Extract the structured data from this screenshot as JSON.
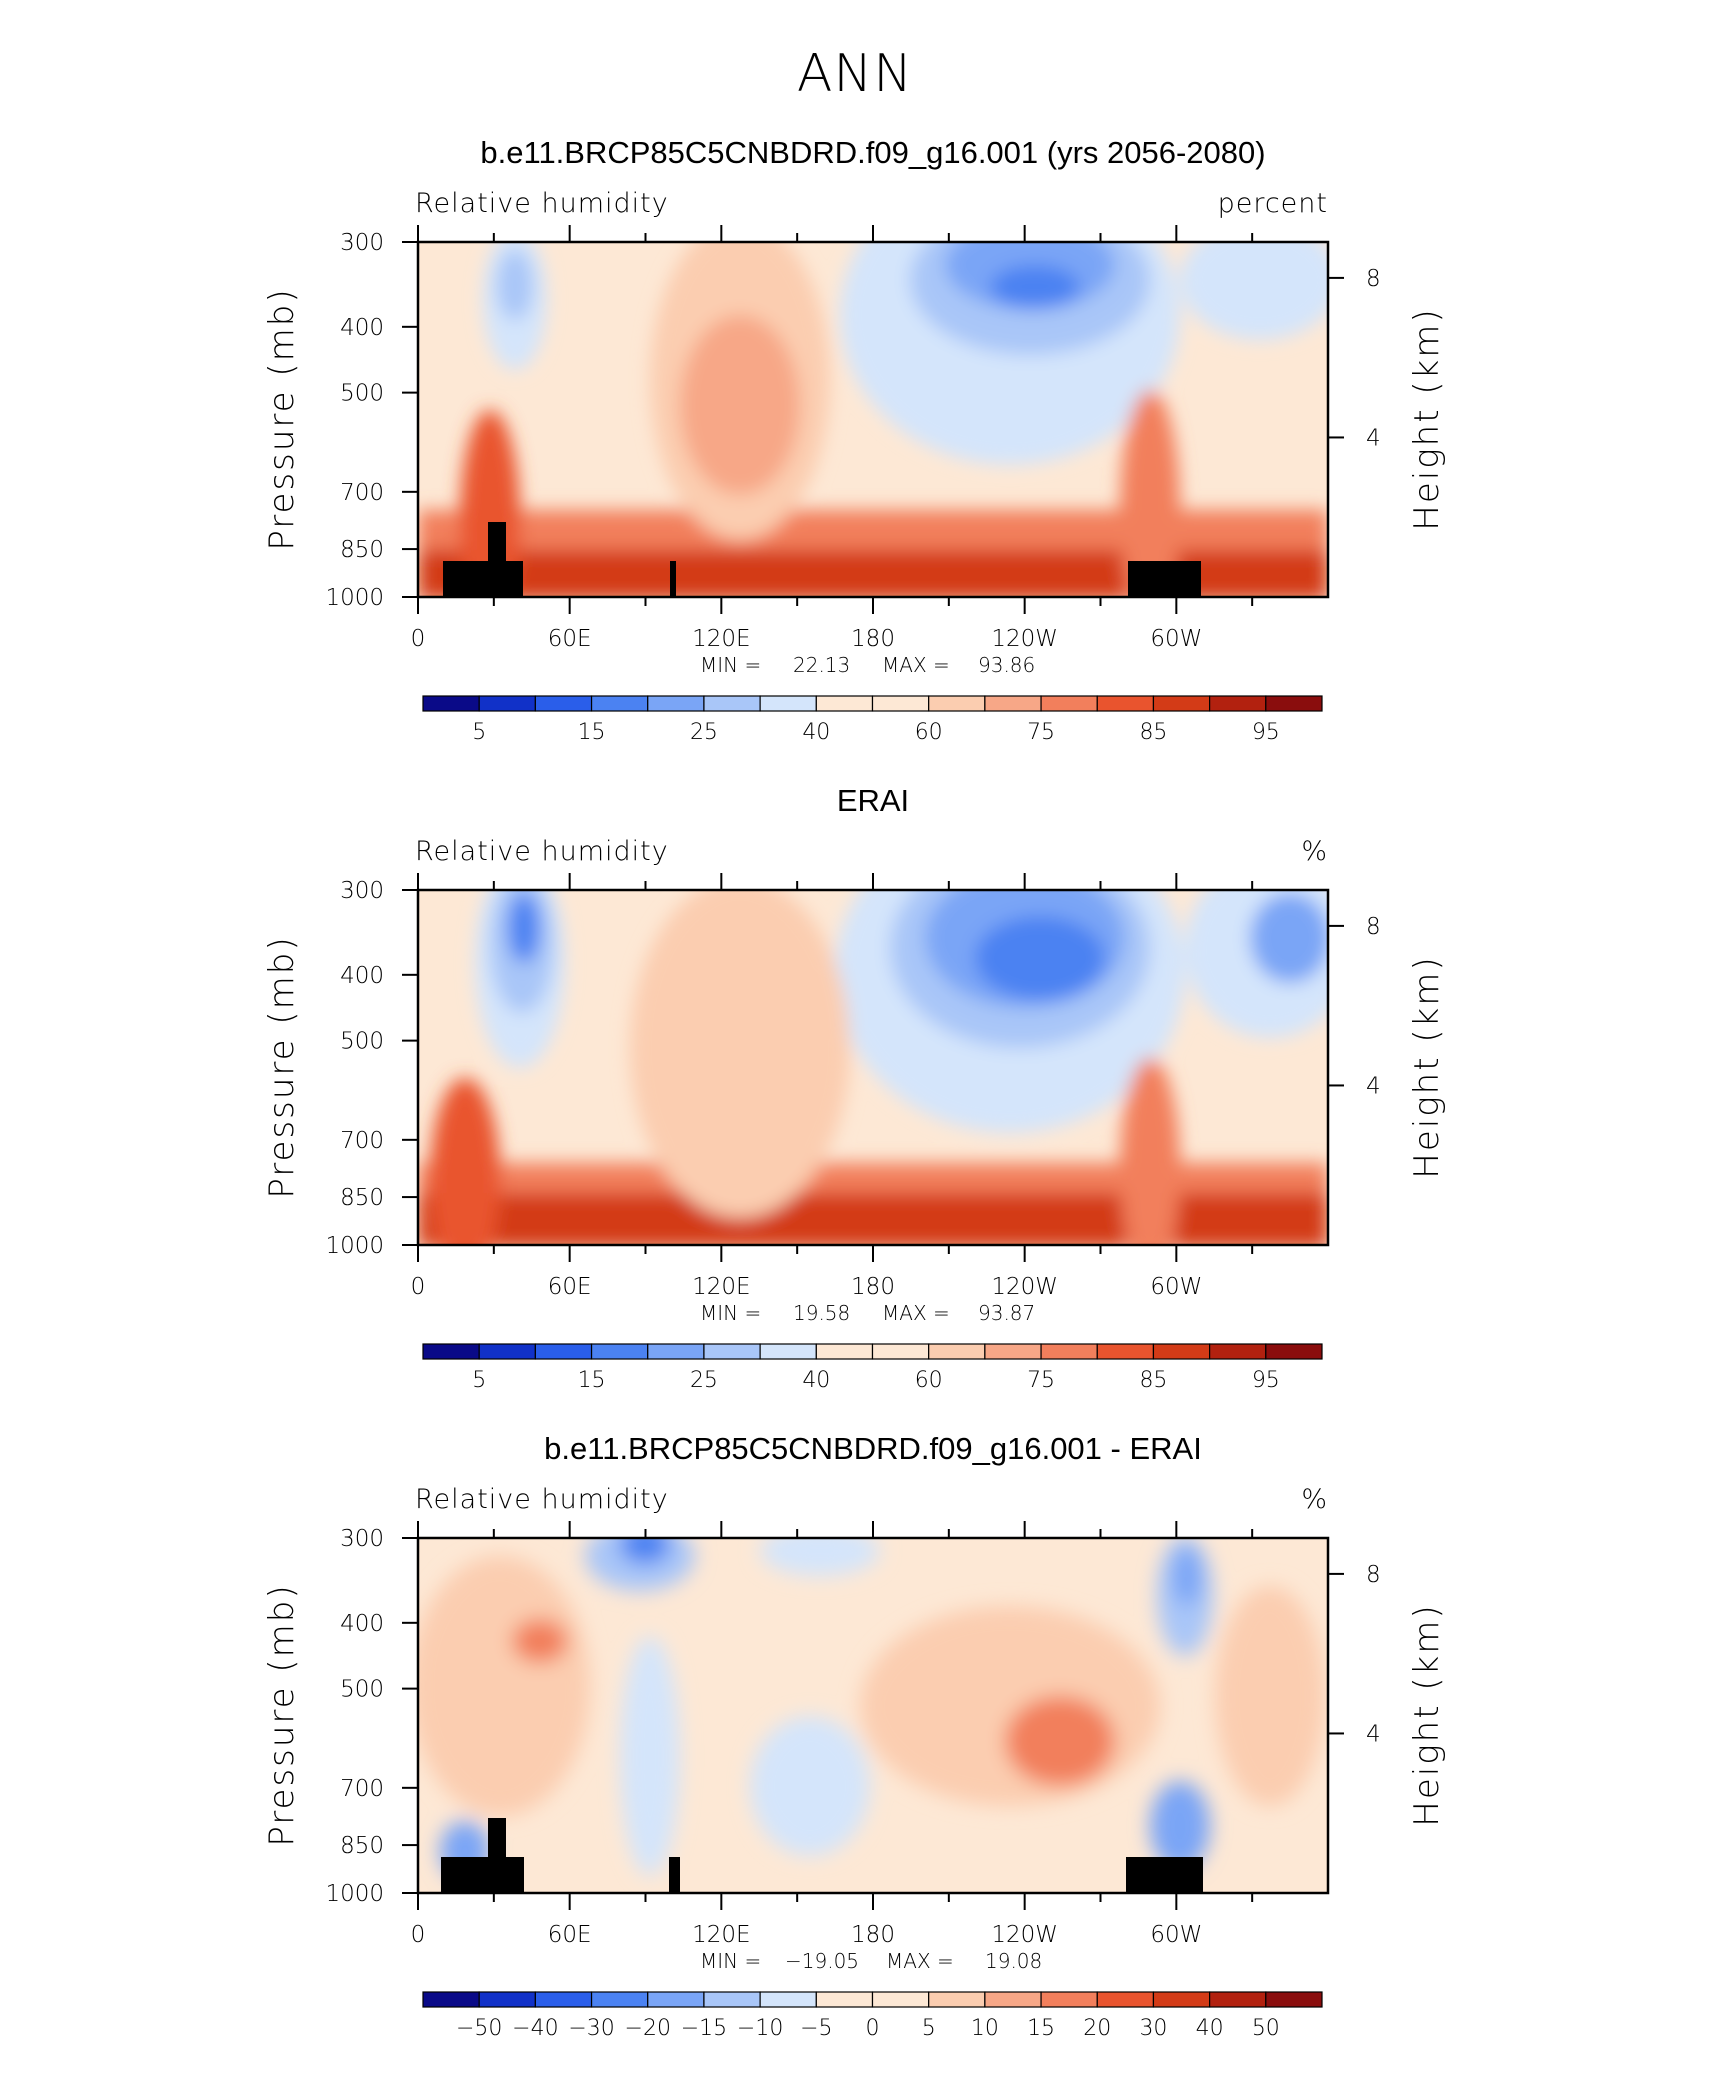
{
  "figure_title": "ANN",
  "chart_data": [
    {
      "type": "contour",
      "title": "b.e11.BRCP85C5CNBDRD.f09_g16.001 (yrs 2056-2080)",
      "left_label": "Relative humidity",
      "right_label": "percent",
      "ylabel": "Pressure (mb)",
      "y2label": "Height (km)",
      "x_ticks": [
        "0",
        "60E",
        "120E",
        "180",
        "120W",
        "60W"
      ],
      "y_ticks": [
        "300",
        "400",
        "500",
        "700",
        "850",
        "1000"
      ],
      "y2_ticks": [
        "8",
        "4"
      ],
      "min_label": "MIN =",
      "min": "22.13",
      "max_label": "MAX =",
      "max": "93.86",
      "colorbar_levels": [
        "5",
        "15",
        "25",
        "40",
        "60",
        "75",
        "85",
        "95"
      ]
    },
    {
      "type": "contour",
      "title": "ERAI",
      "left_label": "Relative humidity",
      "right_label": "%",
      "ylabel": "Pressure (mb)",
      "y2label": "Height (km)",
      "x_ticks": [
        "0",
        "60E",
        "120E",
        "180",
        "120W",
        "60W"
      ],
      "y_ticks": [
        "300",
        "400",
        "500",
        "700",
        "850",
        "1000"
      ],
      "y2_ticks": [
        "8",
        "4"
      ],
      "min_label": "MIN =",
      "min": "19.58",
      "max_label": "MAX =",
      "max": "93.87",
      "colorbar_levels": [
        "5",
        "15",
        "25",
        "40",
        "60",
        "75",
        "85",
        "95"
      ]
    },
    {
      "type": "contour",
      "title": "b.e11.BRCP85C5CNBDRD.f09_g16.001 - ERAI",
      "left_label": "Relative humidity",
      "right_label": "%",
      "ylabel": "Pressure (mb)",
      "y2label": "Height (km)",
      "x_ticks": [
        "0",
        "60E",
        "120E",
        "180",
        "120W",
        "60W"
      ],
      "y_ticks": [
        "300",
        "400",
        "500",
        "700",
        "850",
        "1000"
      ],
      "y2_ticks": [
        "8",
        "4"
      ],
      "min_label": "MIN =",
      "min": "−19.05",
      "max_label": "MAX =",
      "max": "19.08",
      "colorbar_levels": [
        "−50",
        "−40",
        "−30",
        "−20",
        "−15",
        "−10",
        "−5",
        "0",
        "5",
        "10",
        "15",
        "20",
        "30",
        "40",
        "50"
      ]
    }
  ],
  "colors": {
    "palette": [
      "#0a0a88",
      "#1131c8",
      "#2a5eea",
      "#4b82f2",
      "#7aa5f6",
      "#a9c6f8",
      "#d4e5fb",
      "#fde8d5",
      "#fbcdb0",
      "#f7a787",
      "#f27f5c",
      "#e9542e",
      "#d33b17",
      "#b2210f",
      "#8a0d0d"
    ],
    "topography": "#000000"
  }
}
